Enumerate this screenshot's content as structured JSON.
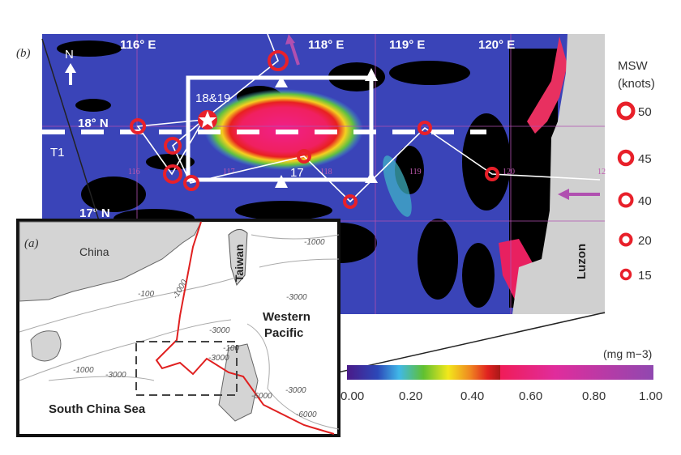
{
  "panel_b": {
    "label": "(b)",
    "lon_labels": [
      "116° E",
      "118° E",
      "119° E",
      "120° E"
    ],
    "lat_labels": [
      "18° N",
      "17° N"
    ],
    "grid_labels": [
      "116",
      "117",
      "118",
      "119",
      "120",
      "12"
    ],
    "north_label": "N",
    "transect_label": "T1",
    "station_labels": [
      "18&19",
      "17"
    ],
    "land_label": "Luzon",
    "colors": {
      "ocean": "#3a44b8",
      "land": "#d0d0d0",
      "cloud": "#000000",
      "track": "#ffffff",
      "marker": "#e8202a",
      "arrow": "#b050b0"
    }
  },
  "legend": {
    "title": "MSW",
    "unit": "(knots)",
    "values": [
      "50",
      "45",
      "40",
      "20",
      "15"
    ]
  },
  "colorbar": {
    "unit": "(mg m−3)",
    "ticks": [
      "0.00",
      "0.20",
      "0.40",
      "0.60",
      "0.80",
      "1.00"
    ],
    "range": [
      0,
      1
    ]
  },
  "panel_a": {
    "label": "(a)",
    "places": [
      "China",
      "Taiwan",
      "Western Pacific",
      "South China Sea"
    ],
    "western": "Western",
    "pacific": "Pacific",
    "contours": [
      "-100",
      "-1000",
      "-3000",
      "-1000",
      "-3000",
      "-3000",
      "-100",
      "-1000",
      "-3000",
      "-3000",
      "-6000",
      "-6000"
    ],
    "colors": {
      "land": "#d4d4d4",
      "track": "#e02020"
    }
  }
}
